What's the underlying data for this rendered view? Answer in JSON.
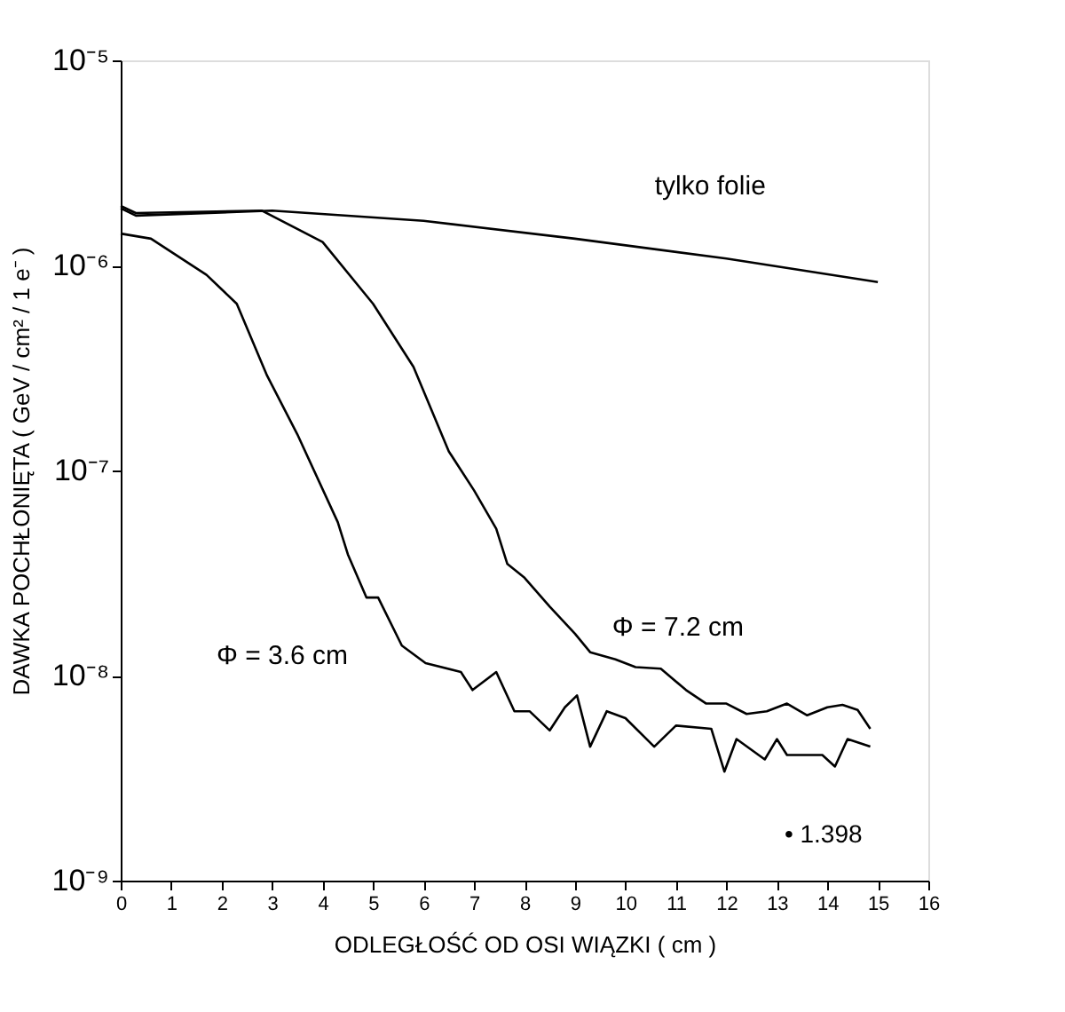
{
  "chart_data": {
    "type": "line",
    "xlabel": "ODLEGŁOŚĆ OD OSI WIĄZKI ( cm )",
    "ylabel": "DAWKA POCHŁONIĘTA ( GeV / cm² / 1 e⁻ )",
    "log": "y",
    "grid": false,
    "marker": "none",
    "line_style": "solid",
    "xlim": [
      0,
      16
    ],
    "xticks": [
      0,
      1,
      2,
      3,
      4,
      5,
      6,
      7,
      8,
      9,
      10,
      11,
      12,
      13,
      14,
      15,
      16
    ],
    "ylim": [
      1e-09,
      1e-05
    ],
    "yticks": [
      {
        "value": 1e-09,
        "label": "10⁻⁹"
      },
      {
        "value": 1e-08,
        "label": "10⁻⁸"
      },
      {
        "value": 1e-07,
        "label": "10⁻⁷"
      },
      {
        "value": 1e-06,
        "label": "10⁻⁶"
      },
      {
        "value": 1e-05,
        "label": "10⁻⁵"
      }
    ],
    "series": [
      {
        "name": "tylko folie",
        "color": "#000000",
        "x": [
          0,
          0.3,
          3,
          6,
          9,
          12,
          15
        ],
        "values": [
          1.9e-06,
          1.75e-06,
          1.85e-06,
          1.65e-06,
          1.35e-06,
          1.08e-06,
          8.3e-07
        ]
      },
      {
        "name": "Φ = 7.2 cm",
        "color": "#000000",
        "x": [
          0,
          0.3,
          2.8,
          4.0,
          5.0,
          5.8,
          6.5,
          7.0,
          7.44,
          7.66,
          8.0,
          8.5,
          9.0,
          9.3,
          9.8,
          10.2,
          10.7,
          11.2,
          11.6,
          12.0,
          12.4,
          12.8,
          13.2,
          13.6,
          14.0,
          14.3,
          14.6,
          14.85
        ],
        "values": [
          1.95e-06,
          1.8e-06,
          1.85e-06,
          1.3e-06,
          6.5e-07,
          3.2e-07,
          1.24e-07,
          8e-08,
          5.2e-08,
          3.5e-08,
          3e-08,
          2.17e-08,
          1.6e-08,
          1.3e-08,
          1.2e-08,
          1.1e-08,
          1.08e-08,
          8.5e-09,
          7.3e-09,
          7.3e-09,
          6.5e-09,
          6.7e-09,
          7.3e-09,
          6.4e-09,
          7e-09,
          7.2e-09,
          6.8e-09,
          5.5e-09
        ]
      },
      {
        "name": "Φ = 3.6 cm",
        "color": "#000000",
        "x": [
          0,
          0.6,
          1.7,
          2.3,
          2.9,
          3.5,
          4.3,
          4.5,
          4.87,
          5.1,
          5.57,
          6.04,
          6.74,
          6.97,
          7.44,
          7.8,
          8.1,
          8.5,
          8.8,
          9.04,
          9.3,
          9.63,
          10.0,
          10.57,
          11.0,
          11.7,
          11.96,
          12.2,
          12.76,
          13.0,
          13.2,
          13.9,
          14.15,
          14.4,
          14.85
        ],
        "values": [
          1.43e-06,
          1.35e-06,
          9e-07,
          6.5e-07,
          2.9e-07,
          1.5e-07,
          5.6e-08,
          3.9e-08,
          2.4e-08,
          2.4e-08,
          1.4e-08,
          1.15e-08,
          1.04e-08,
          8.5e-09,
          1.04e-08,
          6.7e-09,
          6.7e-09,
          5.4e-09,
          7e-09,
          8e-09,
          4.5e-09,
          6.7e-09,
          6.2e-09,
          4.5e-09,
          5.7e-09,
          5.5e-09,
          3.4e-09,
          4.9e-09,
          3.9e-09,
          4.9e-09,
          4.1e-09,
          4.1e-09,
          3.6e-09,
          4.9e-09,
          4.5e-09
        ]
      }
    ],
    "annotations": [
      "• 1.398"
    ]
  }
}
